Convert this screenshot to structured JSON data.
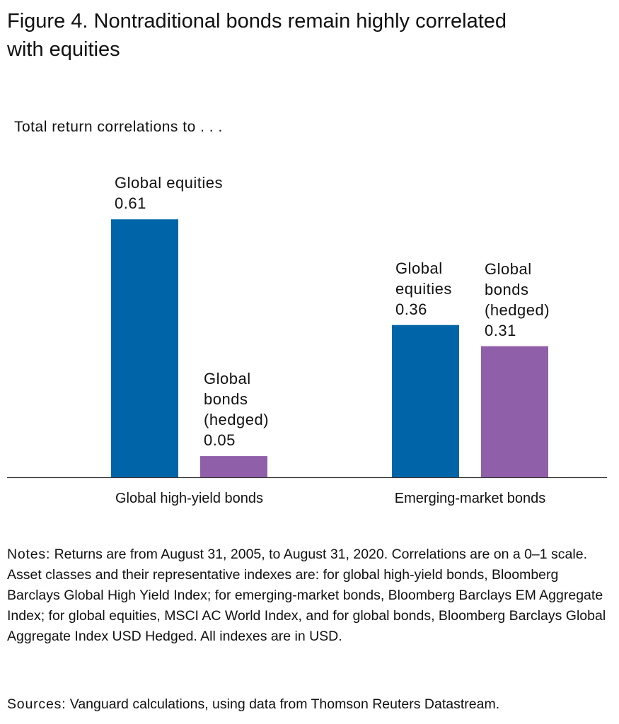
{
  "chart_data": {
    "type": "bar",
    "title": "Figure 4. Nontraditional bonds remain highly correlated with equities",
    "subtitle": "Total return correlations to . . .",
    "categories": [
      "Global high-yield bonds",
      "Emerging-market bonds"
    ],
    "series": [
      {
        "name": "Global equities",
        "color": "#0064a8",
        "values": [
          0.61,
          0.36
        ]
      },
      {
        "name": "Global bonds (hedged)",
        "color": "#8f5fa9",
        "values": [
          0.05,
          0.31
        ]
      }
    ],
    "notes": {
      "label": "Notes:",
      "text": "Returns are from August 31, 2005, to August 31, 2020. Correlations are on a 0–1 scale. Asset classes and their representative indexes are: for global high-yield bonds, Bloomberg Barclays Global High Yield Index; for emerging-market bonds, Bloomberg Barclays EM Aggregate Index; for global equities, MSCI AC World Index, and for global bonds, Bloomberg Barclays Global Aggregate Index USD Hedged. All indexes are in USD."
    },
    "sources": {
      "label": "Sources:",
      "text": "Vanguard calculations, using data from Thomson Reuters Datastream."
    }
  }
}
